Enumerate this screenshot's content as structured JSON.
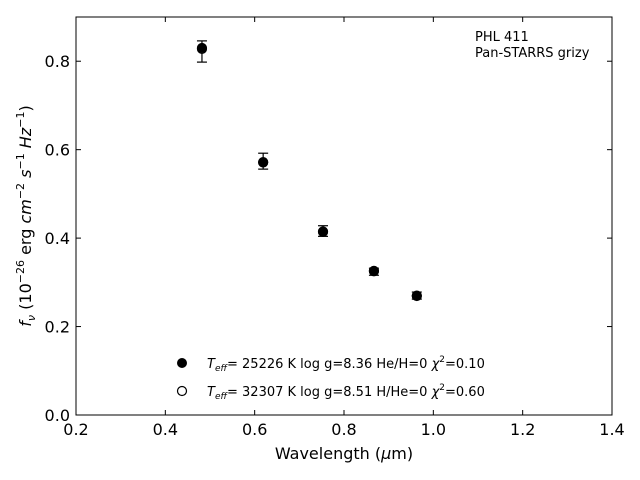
{
  "chart_data": {
    "type": "scatter",
    "annotation": [
      "PHL 411",
      "Pan-STARRS grizy"
    ],
    "xlabel": "Wavelength (μm)",
    "ylabel": "f_ν (10^-26 erg cm^-2 s^-1 Hz^-1)",
    "xlim": [
      0.2,
      1.4
    ],
    "ylim": [
      0.0,
      0.9
    ],
    "x_ticks": [
      "0.2",
      "0.4",
      "0.6",
      "0.8",
      "1.0",
      "1.2",
      "1.4"
    ],
    "y_ticks": [
      "0.0",
      "0.2",
      "0.4",
      "0.6",
      "0.8"
    ],
    "grid": false,
    "legend_position": "lower-center",
    "observed": [
      {
        "x": 0.482,
        "y": 0.822,
        "err": 0.024
      },
      {
        "x": 0.619,
        "y": 0.574,
        "err": 0.018
      },
      {
        "x": 0.753,
        "y": 0.416,
        "err": 0.012
      },
      {
        "x": 0.867,
        "y": 0.324,
        "err": 0.008
      },
      {
        "x": 0.963,
        "y": 0.27,
        "err": 0.008
      }
    ],
    "series": [
      {
        "name": "T_eff= 25226 K  log g=8.36  He/H=0  χ²=0.10",
        "marker": "filled",
        "values": [
          {
            "x": 0.482,
            "y": 0.83
          },
          {
            "x": 0.619,
            "y": 0.572
          },
          {
            "x": 0.753,
            "y": 0.414
          },
          {
            "x": 0.867,
            "y": 0.325
          },
          {
            "x": 0.963,
            "y": 0.269
          }
        ]
      },
      {
        "name": "T_eff= 32307 K  log g=8.51  H/He=0  χ²=0.60",
        "marker": "open",
        "values": [
          {
            "x": 0.482,
            "y": 0.828
          },
          {
            "x": 0.619,
            "y": 0.571
          },
          {
            "x": 0.753,
            "y": 0.415
          },
          {
            "x": 0.867,
            "y": 0.326
          },
          {
            "x": 0.963,
            "y": 0.27
          }
        ]
      }
    ],
    "legend_parts": [
      {
        "teff_value": "= 25226 K  log g=8.36  He/H=0  ",
        "chi_value": "=0.10"
      },
      {
        "teff_value": "= 32307 K  log g=8.51  H/He=0  ",
        "chi_value": "=0.60"
      }
    ],
    "colors": {
      "marker": "#000000",
      "background": "#ffffff"
    }
  }
}
